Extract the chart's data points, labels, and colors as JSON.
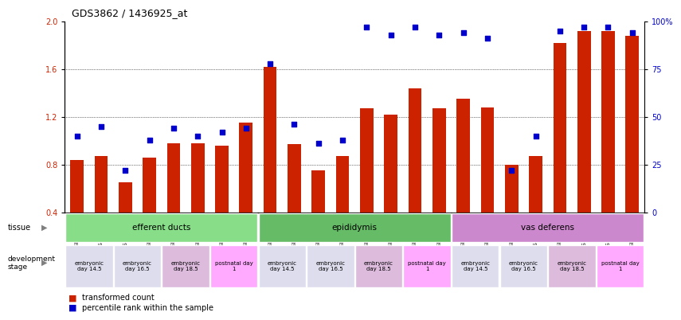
{
  "title": "GDS3862 / 1436925_at",
  "samples": [
    "GSM560923",
    "GSM560924",
    "GSM560925",
    "GSM560926",
    "GSM560927",
    "GSM560928",
    "GSM560929",
    "GSM560930",
    "GSM560931",
    "GSM560932",
    "GSM560933",
    "GSM560934",
    "GSM560935",
    "GSM560936",
    "GSM560937",
    "GSM560938",
    "GSM560939",
    "GSM560940",
    "GSM560941",
    "GSM560942",
    "GSM560943",
    "GSM560944",
    "GSM560945",
    "GSM560946"
  ],
  "transformed_count": [
    0.84,
    0.87,
    0.65,
    0.86,
    0.98,
    0.98,
    0.96,
    1.15,
    1.62,
    0.97,
    0.75,
    0.87,
    1.27,
    1.22,
    1.44,
    1.27,
    1.35,
    1.28,
    0.8,
    0.87,
    1.82,
    1.92,
    1.92,
    1.88
  ],
  "percentile_rank": [
    40,
    45,
    22,
    38,
    44,
    40,
    42,
    44,
    78,
    46,
    36,
    38,
    97,
    93,
    97,
    93,
    94,
    91,
    22,
    40,
    95,
    97,
    97,
    94
  ],
  "bar_color": "#cc2200",
  "dot_color": "#0000cc",
  "ylim_left": [
    0.4,
    2.0
  ],
  "ylim_right": [
    0,
    100
  ],
  "yticks_left": [
    0.4,
    0.8,
    1.2,
    1.6,
    2.0
  ],
  "yticks_right": [
    0,
    25,
    50,
    75,
    100
  ],
  "ytick_labels_right": [
    "0",
    "25",
    "50",
    "75",
    "100%"
  ],
  "gridlines": [
    0.8,
    1.2,
    1.6
  ],
  "tissue_groups": [
    {
      "label": "efferent ducts",
      "start": 0,
      "end": 8,
      "color": "#88dd88"
    },
    {
      "label": "epididymis",
      "start": 8,
      "end": 16,
      "color": "#66bb66"
    },
    {
      "label": "vas deferens",
      "start": 16,
      "end": 24,
      "color": "#cc88cc"
    }
  ],
  "dev_stage_groups": [
    {
      "label": "embryonic\nday 14.5",
      "start": 0,
      "end": 2,
      "color": "#ddddee"
    },
    {
      "label": "embryonic\nday 16.5",
      "start": 2,
      "end": 4,
      "color": "#ddddee"
    },
    {
      "label": "embryonic\nday 18.5",
      "start": 4,
      "end": 6,
      "color": "#ddbbdd"
    },
    {
      "label": "postnatal day\n1",
      "start": 6,
      "end": 8,
      "color": "#ffaaff"
    },
    {
      "label": "embryonic\nday 14.5",
      "start": 8,
      "end": 10,
      "color": "#ddddee"
    },
    {
      "label": "embryonic\nday 16.5",
      "start": 10,
      "end": 12,
      "color": "#ddddee"
    },
    {
      "label": "embryonic\nday 18.5",
      "start": 12,
      "end": 14,
      "color": "#ddbbdd"
    },
    {
      "label": "postnatal day\n1",
      "start": 14,
      "end": 16,
      "color": "#ffaaff"
    },
    {
      "label": "embryonic\nday 14.5",
      "start": 16,
      "end": 18,
      "color": "#ddddee"
    },
    {
      "label": "embryonic\nday 16.5",
      "start": 18,
      "end": 20,
      "color": "#ddddee"
    },
    {
      "label": "embryonic\nday 18.5",
      "start": 20,
      "end": 22,
      "color": "#ddbbdd"
    },
    {
      "label": "postnatal day\n1",
      "start": 22,
      "end": 24,
      "color": "#ffaaff"
    }
  ],
  "background_color": "#ffffff"
}
